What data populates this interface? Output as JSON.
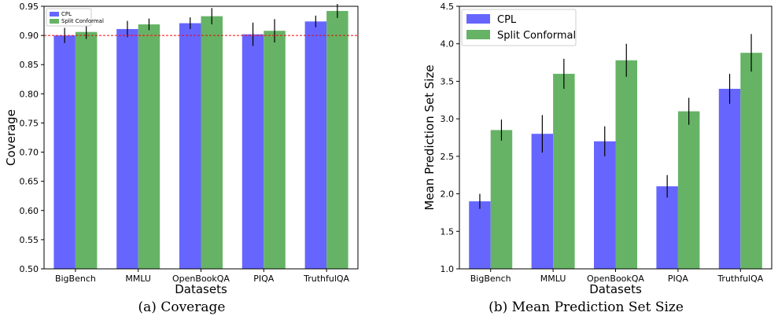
{
  "colors": {
    "cpl": "#6666ff",
    "split": "#66b366",
    "ref_line": "#ff0000",
    "error": "#000000"
  },
  "chart_data": [
    {
      "type": "bar",
      "caption": "(a) Coverage",
      "xlabel": "Datasets",
      "ylabel": "Coverage",
      "categories": [
        "BigBench",
        "MMLU",
        "OpenBookQA",
        "PIQA",
        "TruthfulQA"
      ],
      "ylim": [
        0.5,
        0.95
      ],
      "yticks": [
        "0.50",
        "0.55",
        "0.60",
        "0.65",
        "0.70",
        "0.75",
        "0.80",
        "0.85",
        "0.90",
        "0.95"
      ],
      "reference_line": 0.9,
      "legend": "top-left",
      "series": [
        {
          "name": "CPL",
          "values": [
            0.9,
            0.911,
            0.921,
            0.902,
            0.924
          ],
          "errors": [
            0.013,
            0.014,
            0.01,
            0.02,
            0.01
          ]
        },
        {
          "name": "Split Conformal",
          "values": [
            0.906,
            0.919,
            0.933,
            0.908,
            0.942
          ],
          "errors": [
            0.012,
            0.01,
            0.014,
            0.02,
            0.012
          ]
        }
      ]
    },
    {
      "type": "bar",
      "caption": "(b) Mean Prediction Set Size",
      "xlabel": "Datasets",
      "ylabel": "Mean Prediction Set Size",
      "categories": [
        "BigBench",
        "MMLU",
        "OpenBookQA",
        "PIQA",
        "TruthfulQA"
      ],
      "ylim": [
        1.0,
        4.5
      ],
      "yticks": [
        "1.0",
        "1.5",
        "2.0",
        "2.5",
        "3.0",
        "3.5",
        "4.0",
        "4.5"
      ],
      "legend": "top-left",
      "series": [
        {
          "name": "CPL",
          "values": [
            1.9,
            2.8,
            2.7,
            2.1,
            3.4
          ],
          "errors": [
            0.1,
            0.25,
            0.2,
            0.15,
            0.2
          ]
        },
        {
          "name": "Split Conformal",
          "values": [
            2.85,
            3.6,
            3.78,
            3.1,
            3.88
          ],
          "errors": [
            0.14,
            0.2,
            0.22,
            0.18,
            0.25
          ]
        }
      ]
    }
  ]
}
